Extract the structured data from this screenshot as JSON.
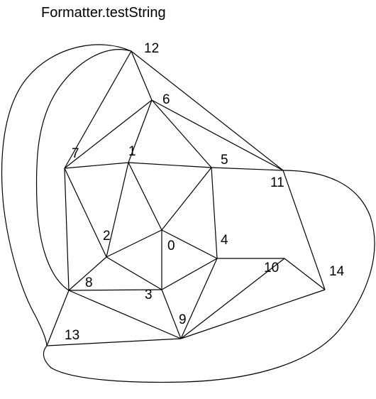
{
  "title": "Formatter.testString",
  "graph": {
    "node_labels": [
      "0",
      "1",
      "2",
      "3",
      "4",
      "5",
      "6",
      "7",
      "8",
      "9",
      "10",
      "11",
      "12",
      "13",
      "14"
    ],
    "straight_edges": [
      [
        "12",
        "6"
      ],
      [
        "12",
        "7"
      ],
      [
        "12",
        "11"
      ],
      [
        "6",
        "7"
      ],
      [
        "6",
        "1"
      ],
      [
        "6",
        "5"
      ],
      [
        "6",
        "11"
      ],
      [
        "7",
        "1"
      ],
      [
        "7",
        "2"
      ],
      [
        "7",
        "8"
      ],
      [
        "1",
        "5"
      ],
      [
        "1",
        "2"
      ],
      [
        "1",
        "0"
      ],
      [
        "5",
        "11"
      ],
      [
        "5",
        "0"
      ],
      [
        "5",
        "4"
      ],
      [
        "11",
        "14"
      ],
      [
        "0",
        "2"
      ],
      [
        "0",
        "4"
      ],
      [
        "0",
        "3"
      ],
      [
        "2",
        "3"
      ],
      [
        "2",
        "8"
      ],
      [
        "3",
        "8"
      ],
      [
        "3",
        "4"
      ],
      [
        "3",
        "9"
      ],
      [
        "4",
        "10"
      ],
      [
        "4",
        "9"
      ],
      [
        "10",
        "14"
      ],
      [
        "10",
        "9"
      ],
      [
        "9",
        "14"
      ],
      [
        "9",
        "13"
      ],
      [
        "9",
        "8"
      ],
      [
        "8",
        "13"
      ]
    ],
    "curved_edges": [
      [
        "12",
        "8"
      ],
      [
        "12",
        "13"
      ],
      [
        "11",
        "13"
      ]
    ]
  }
}
